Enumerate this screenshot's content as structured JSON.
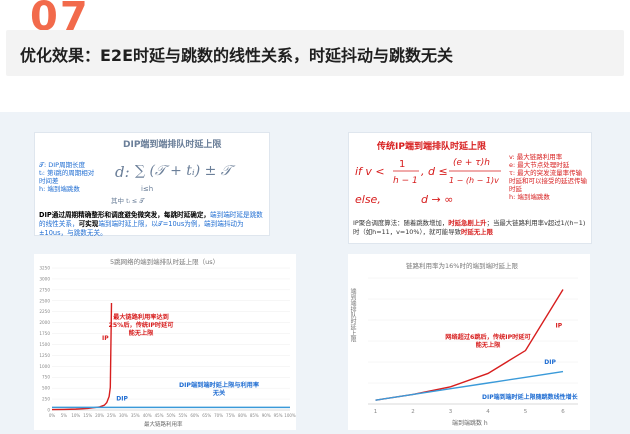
{
  "section_number": "07",
  "heading": "优化效果：E2E时延与跳数的线性关系，时延抖动与跳数无关",
  "dip_box": {
    "title": "DIP端到端排队时延上限",
    "legend": [
      "𝒯: DIP周期长度",
      "tᵢ: 第i跳的周期相对时间差",
      "h: 端到端跳数"
    ],
    "formula_left": "d:",
    "formula_sum": "∑ (𝒯 + tᵢ) ± 𝒯",
    "formula_sub": "i≤h",
    "formula_note": "其中 tᵢ ≤ 𝒯",
    "desc_black": "DIP通过周期精确整形和调度避免微突发，每跳时延确定，",
    "desc_blue1": "端到端时延是跳数的线性关系，",
    "desc_black2": "可实现",
    "desc_blue2": "端到端时延上限，以𝒯=10us为例，端到端抖动为±10us，与跳数无关。"
  },
  "ip_box": {
    "title": "传统IP端到端排队时延上限",
    "line1": "if v < 1/(h−1), d ≤ (e+τ)h / (1−(h−1)v)",
    "line2": "else,           d → ∞",
    "legend": [
      "v: 最大链路利用率",
      "e: 最大节点处理时延",
      "τ: 最大的突发流量率传输时延和可以接受的延迟传输时延",
      "h: 端到端跳数"
    ],
    "desc1": "IP聚合调度算法：随着跳数增加，",
    "desc_red": "时延急剧上升",
    "desc2": "；当最大链路利用率v超过1/(h−1)时（如h=11，v=10%），就可能导致",
    "desc_red2": "时延无上限"
  },
  "chart_left": {
    "title": "5跳网络的端到端排队时延上限（us）",
    "xlabel": "最大链路利用率",
    "y_ticks": [
      "0",
      "250",
      "500",
      "750",
      "1000",
      "1250",
      "1500",
      "1750",
      "2000",
      "2250",
      "2500",
      "2750",
      "3000",
      "3250"
    ],
    "x_ticks": [
      "0%",
      "5%",
      "10%",
      "15%",
      "20%",
      "25%",
      "30%",
      "35%",
      "40%",
      "45%",
      "50%",
      "55%",
      "60%",
      "65%",
      "70%",
      "75%",
      "80%",
      "85%",
      "90%",
      "95%",
      "100%"
    ],
    "ip_label": "IP",
    "ip_note": "最大链路利用率达到25%后，传统IP时延可能无上限",
    "dip_label": "DIP",
    "dip_note": "DIP端到端时延上限与利用率无关"
  },
  "chart_right": {
    "title": "链路利用率为16%时的端到端时延上限",
    "ylabel": "端到端排队时延上限",
    "xlabel": "端到端跳数 h",
    "x_ticks": [
      "1",
      "2",
      "3",
      "4",
      "5",
      "6"
    ],
    "ip_label": "IP",
    "ip_note": "网络超过6跳后，传统IP时延可能无上限",
    "dip_label": "DIP",
    "dip_note": "DIP端到端时延上限随跳数线性增长"
  },
  "chart_data": [
    {
      "type": "line",
      "title": "5跳网络的端到端排队时延上限（us）",
      "xlabel": "最大链路利用率",
      "ylabel": "",
      "x": [
        0,
        5,
        10,
        15,
        20,
        22,
        23,
        24,
        24.5,
        25
      ],
      "series": [
        {
          "name": "IP",
          "values": [
            10,
            13,
            20,
            35,
            70,
            110,
            170,
            310,
            520,
            2450
          ]
        },
        {
          "name": "DIP",
          "values": [
            60,
            60,
            60,
            60,
            60,
            60,
            60,
            60,
            60,
            60
          ]
        }
      ],
      "ylim": [
        0,
        3250
      ],
      "xlim": [
        0,
        100
      ]
    },
    {
      "type": "line",
      "title": "链路利用率为16%时的端到端时延上限",
      "xlabel": "端到端跳数 h",
      "ylabel": "端到端排队时延上限",
      "x": [
        1,
        2,
        3,
        4,
        5,
        6
      ],
      "series": [
        {
          "name": "IP",
          "values": [
            2,
            5,
            9,
            16,
            28,
            60
          ]
        },
        {
          "name": "DIP",
          "values": [
            2,
            5,
            8,
            11,
            14,
            17
          ]
        }
      ],
      "xlim": [
        1,
        6
      ]
    }
  ],
  "colors": {
    "accent_number": "#f26a4b",
    "ip_line": "#d71e1e",
    "dip_line": "#3a9ad9",
    "note_blue": "#1f6dd2"
  }
}
